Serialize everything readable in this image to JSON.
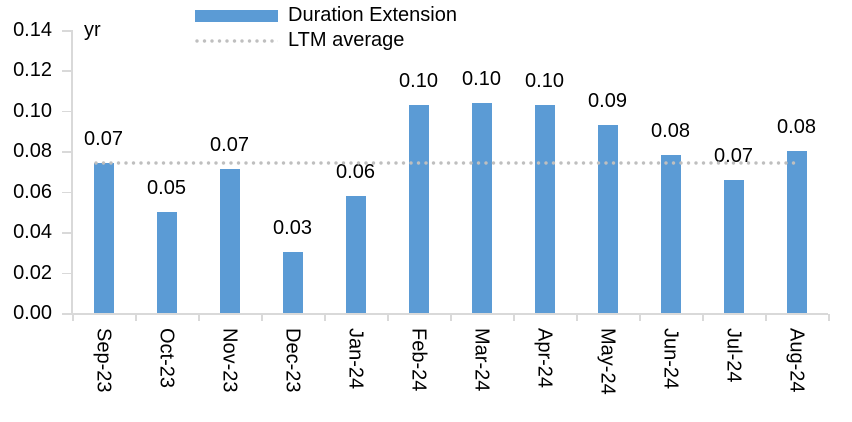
{
  "chart_data": {
    "type": "bar",
    "title": "",
    "ylabel": "yr",
    "xlabel": "",
    "categories": [
      "Sep-23",
      "Oct-23",
      "Nov-23",
      "Dec-23",
      "Jan-24",
      "Feb-24",
      "Mar-24",
      "Apr-24",
      "May-24",
      "Jun-24",
      "Jul-24",
      "Aug-24"
    ],
    "series": [
      {
        "name": "Duration Extension",
        "type": "bar",
        "color": "#5B9BD5",
        "values": [
          0.074,
          0.05,
          0.071,
          0.03,
          0.058,
          0.103,
          0.104,
          0.103,
          0.093,
          0.078,
          0.066,
          0.08
        ],
        "data_labels": [
          "0.07",
          "0.05",
          "0.07",
          "0.03",
          "0.06",
          "0.10",
          "0.10",
          "0.10",
          "0.09",
          "0.08",
          "0.07",
          "0.08"
        ]
      },
      {
        "name": "LTM average",
        "type": "line",
        "line_style": "dotted",
        "color": "#BFBFBF",
        "value": 0.074
      }
    ],
    "y_axis": {
      "min": 0,
      "max": 0.14,
      "step": 0.02,
      "tick_labels_top_to_bottom": [
        "0.14",
        "0.12",
        "0.10",
        "0.08",
        "0.06",
        "0.04",
        "0.02",
        "0.00"
      ]
    },
    "ylim": [
      0,
      0.14
    ],
    "grid": false,
    "legend_position": "top",
    "axis_color": "#D9D9D9",
    "text_color": "#000000"
  }
}
